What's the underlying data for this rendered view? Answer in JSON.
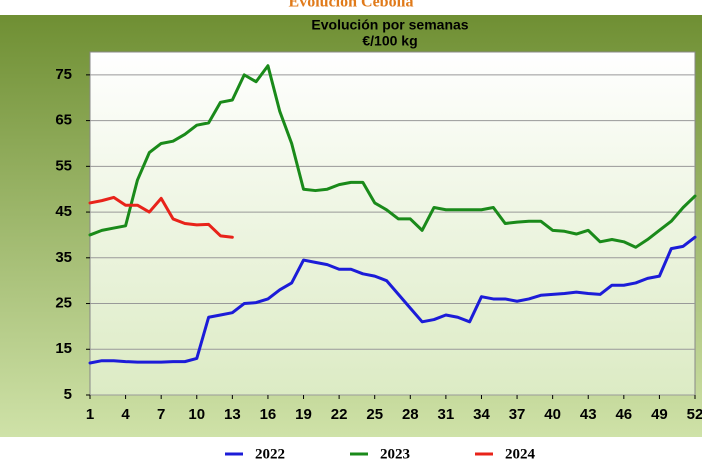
{
  "chart_data": {
    "type": "line",
    "title": "Evolución Cebolla",
    "subtitle": "Evolución por semanas",
    "y_label": "€/100 kg",
    "x": [
      1,
      2,
      3,
      4,
      5,
      6,
      7,
      8,
      9,
      10,
      11,
      12,
      13,
      14,
      15,
      16,
      17,
      18,
      19,
      20,
      21,
      22,
      23,
      24,
      25,
      26,
      27,
      28,
      29,
      30,
      31,
      32,
      33,
      34,
      35,
      36,
      37,
      38,
      39,
      40,
      41,
      42,
      43,
      44,
      45,
      46,
      47,
      48,
      49,
      50,
      51,
      52
    ],
    "xlim": [
      1,
      52
    ],
    "xticks": [
      1,
      4,
      7,
      10,
      13,
      16,
      19,
      22,
      25,
      28,
      31,
      34,
      37,
      40,
      43,
      46,
      49,
      52
    ],
    "ylim": [
      5,
      80
    ],
    "yticks": [
      5,
      15,
      25,
      35,
      45,
      55,
      65,
      75
    ],
    "grid": true,
    "legend": "bottom",
    "series": [
      {
        "name": "2022",
        "color": "#1c1cd8",
        "values": [
          12,
          12.5,
          12.5,
          12.3,
          12.2,
          12.2,
          12.2,
          12.3,
          12.3,
          13,
          22,
          22.5,
          23,
          25,
          25.2,
          26,
          28,
          29.5,
          34.5,
          34,
          33.5,
          32.5,
          32.5,
          31.5,
          31,
          30,
          27,
          24,
          21,
          21.5,
          22.5,
          22,
          21,
          26.5,
          26,
          26,
          25.5,
          26,
          26.8,
          27,
          27.2,
          27.5,
          27.2,
          27,
          29,
          29,
          29.5,
          30.5,
          31,
          37,
          37.5,
          39.5
        ]
      },
      {
        "name": "2023",
        "color": "#1a8a1a",
        "values": [
          40,
          41,
          41.5,
          42,
          52,
          58,
          60,
          60.5,
          62,
          64,
          64.5,
          69,
          69.5,
          75,
          73.5,
          77,
          67,
          60,
          50,
          49.7,
          50,
          51,
          51.5,
          51.5,
          47,
          45.5,
          43.5,
          43.5,
          41,
          46,
          45.5,
          45.5,
          45.5,
          45.5,
          46,
          42.5,
          42.8,
          43,
          43,
          41,
          40.8,
          40.2,
          41,
          38.5,
          39,
          38.5,
          37.3,
          39,
          41,
          43,
          46,
          48.5
        ]
      },
      {
        "name": "2024",
        "color": "#e8231a",
        "values": [
          47,
          47.5,
          48.2,
          46.5,
          46.5,
          45,
          48,
          43.5,
          42.5,
          42.2,
          42.3,
          39.8,
          39.5,
          null,
          null,
          null,
          null,
          null,
          null,
          null,
          null,
          null,
          null,
          null,
          null,
          null,
          null,
          null,
          null,
          null,
          null,
          null,
          null,
          null,
          null,
          null,
          null,
          null,
          null,
          null,
          null,
          null,
          null,
          null,
          null,
          null,
          null,
          null,
          null,
          null,
          null,
          null
        ]
      }
    ]
  }
}
